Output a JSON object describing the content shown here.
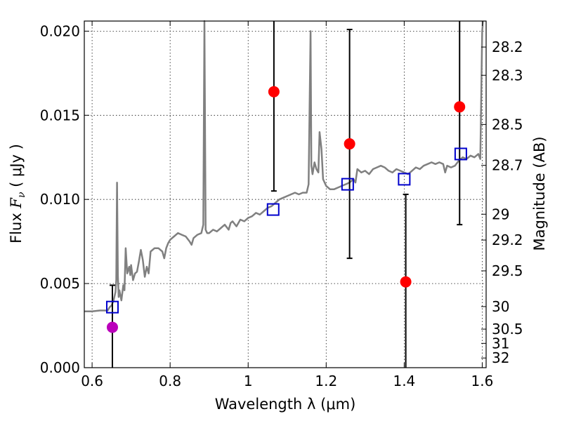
{
  "chart_data": {
    "type": "scatter",
    "xlabel": "Wavelength  λ (μm)",
    "ylabel": "Flux  F_ν  ( μJy )",
    "y2label": "Magnitude (AB)",
    "xlim": [
      0.58,
      1.61
    ],
    "ylim": [
      0.0,
      0.0206
    ],
    "x_ticks": [
      0.6,
      0.8,
      1.0,
      1.2,
      1.4,
      1.6
    ],
    "x_tick_labels": [
      "0.6",
      "0.8",
      "1",
      "1.2",
      "1.4",
      "1.6"
    ],
    "y_ticks": [
      0.0,
      0.005,
      0.01,
      0.015,
      0.02
    ],
    "y_tick_labels": [
      "0.000",
      "0.005",
      "0.010",
      "0.015",
      "0.020"
    ],
    "y2_ticks": [
      {
        "mag": 28.2,
        "label": "28.2"
      },
      {
        "mag": 28.3,
        "label": "28.3"
      },
      {
        "mag": 28.5,
        "label": "28.5"
      },
      {
        "mag": 28.7,
        "label": "28.7"
      },
      {
        "mag": 29.0,
        "label": "29"
      },
      {
        "mag": 29.2,
        "label": "29.2"
      },
      {
        "mag": 29.5,
        "label": "29.5"
      },
      {
        "mag": 30.0,
        "label": "30"
      },
      {
        "mag": 30.5,
        "label": "30.5"
      },
      {
        "mag": 31.0,
        "label": "31"
      },
      {
        "mag": 32.0,
        "label": "32"
      }
    ],
    "grid": true,
    "model_spectrum": {
      "color": "#808080",
      "points": [
        [
          0.58,
          0.00335
        ],
        [
          0.6,
          0.00335
        ],
        [
          0.62,
          0.0034
        ],
        [
          0.64,
          0.0034
        ],
        [
          0.645,
          0.0036
        ],
        [
          0.65,
          0.0037
        ],
        [
          0.655,
          0.004
        ],
        [
          0.66,
          0.0045
        ],
        [
          0.662,
          0.0052
        ],
        [
          0.664,
          0.011
        ],
        [
          0.666,
          0.0055
        ],
        [
          0.668,
          0.0042
        ],
        [
          0.67,
          0.0046
        ],
        [
          0.675,
          0.004
        ],
        [
          0.68,
          0.0049
        ],
        [
          0.683,
          0.0046
        ],
        [
          0.686,
          0.0071
        ],
        [
          0.69,
          0.0056
        ],
        [
          0.695,
          0.006
        ],
        [
          0.698,
          0.0055
        ],
        [
          0.7,
          0.0061
        ],
        [
          0.705,
          0.0052
        ],
        [
          0.71,
          0.0056
        ],
        [
          0.715,
          0.0057
        ],
        [
          0.72,
          0.0063
        ],
        [
          0.725,
          0.007
        ],
        [
          0.73,
          0.0064
        ],
        [
          0.735,
          0.0054
        ],
        [
          0.74,
          0.006
        ],
        [
          0.745,
          0.0056
        ],
        [
          0.75,
          0.0069
        ],
        [
          0.76,
          0.0071
        ],
        [
          0.77,
          0.0071
        ],
        [
          0.78,
          0.0069
        ],
        [
          0.785,
          0.0065
        ],
        [
          0.79,
          0.0071
        ],
        [
          0.795,
          0.0074
        ],
        [
          0.8,
          0.0076
        ],
        [
          0.81,
          0.0078
        ],
        [
          0.82,
          0.008
        ],
        [
          0.83,
          0.0079
        ],
        [
          0.84,
          0.0078
        ],
        [
          0.85,
          0.0075
        ],
        [
          0.855,
          0.0073
        ],
        [
          0.86,
          0.0077
        ],
        [
          0.87,
          0.0079
        ],
        [
          0.88,
          0.008
        ],
        [
          0.885,
          0.0085
        ],
        [
          0.888,
          0.0206
        ],
        [
          0.891,
          0.0082
        ],
        [
          0.895,
          0.008
        ],
        [
          0.9,
          0.008
        ],
        [
          0.91,
          0.0082
        ],
        [
          0.92,
          0.0081
        ],
        [
          0.93,
          0.0083
        ],
        [
          0.94,
          0.0085
        ],
        [
          0.95,
          0.0082
        ],
        [
          0.955,
          0.0086
        ],
        [
          0.96,
          0.0087
        ],
        [
          0.97,
          0.0084
        ],
        [
          0.98,
          0.0088
        ],
        [
          0.99,
          0.0087
        ],
        [
          1.0,
          0.0089
        ],
        [
          1.01,
          0.009
        ],
        [
          1.02,
          0.0092
        ],
        [
          1.03,
          0.0091
        ],
        [
          1.04,
          0.0093
        ],
        [
          1.05,
          0.0095
        ],
        [
          1.06,
          0.0096
        ],
        [
          1.07,
          0.0098
        ],
        [
          1.08,
          0.01
        ],
        [
          1.09,
          0.0101
        ],
        [
          1.1,
          0.0102
        ],
        [
          1.11,
          0.0103
        ],
        [
          1.12,
          0.0104
        ],
        [
          1.13,
          0.0103
        ],
        [
          1.14,
          0.0104
        ],
        [
          1.15,
          0.0104
        ],
        [
          1.155,
          0.0109
        ],
        [
          1.16,
          0.02
        ],
        [
          1.162,
          0.012
        ],
        [
          1.165,
          0.0115
        ],
        [
          1.17,
          0.0122
        ],
        [
          1.175,
          0.0118
        ],
        [
          1.18,
          0.0116
        ],
        [
          1.183,
          0.014
        ],
        [
          1.188,
          0.013
        ],
        [
          1.192,
          0.0112
        ],
        [
          1.2,
          0.0108
        ],
        [
          1.21,
          0.0106
        ],
        [
          1.22,
          0.0106
        ],
        [
          1.23,
          0.0107
        ],
        [
          1.24,
          0.0108
        ],
        [
          1.25,
          0.0109
        ],
        [
          1.26,
          0.011
        ],
        [
          1.27,
          0.0112
        ],
        [
          1.275,
          0.011
        ],
        [
          1.28,
          0.0118
        ],
        [
          1.29,
          0.0116
        ],
        [
          1.3,
          0.0117
        ],
        [
          1.31,
          0.0115
        ],
        [
          1.32,
          0.0118
        ],
        [
          1.33,
          0.0119
        ],
        [
          1.34,
          0.012
        ],
        [
          1.35,
          0.0119
        ],
        [
          1.36,
          0.0117
        ],
        [
          1.37,
          0.0116
        ],
        [
          1.38,
          0.0118
        ],
        [
          1.39,
          0.0117
        ],
        [
          1.4,
          0.0116
        ],
        [
          1.41,
          0.0115
        ],
        [
          1.42,
          0.0117
        ],
        [
          1.43,
          0.0119
        ],
        [
          1.44,
          0.0118
        ],
        [
          1.45,
          0.012
        ],
        [
          1.46,
          0.0121
        ],
        [
          1.47,
          0.0122
        ],
        [
          1.48,
          0.0121
        ],
        [
          1.49,
          0.0122
        ],
        [
          1.5,
          0.0121
        ],
        [
          1.505,
          0.0116
        ],
        [
          1.51,
          0.012
        ],
        [
          1.52,
          0.0119
        ],
        [
          1.53,
          0.012
        ],
        [
          1.54,
          0.0123
        ],
        [
          1.55,
          0.0125
        ],
        [
          1.56,
          0.0124
        ],
        [
          1.57,
          0.0126
        ],
        [
          1.58,
          0.0125
        ],
        [
          1.59,
          0.0127
        ],
        [
          1.595,
          0.0124
        ],
        [
          1.6,
          0.02
        ],
        [
          1.602,
          0.0206
        ]
      ]
    },
    "model_photometry": {
      "color": "#0000cc",
      "marker": "open-square",
      "points": [
        [
          0.652,
          0.0036
        ],
        [
          1.064,
          0.0094
        ],
        [
          1.255,
          0.0109
        ],
        [
          1.4,
          0.0112
        ],
        [
          1.545,
          0.0127
        ]
      ]
    },
    "observed": {
      "color": "#ff0000",
      "marker": "filled-circle",
      "points": [
        {
          "x": 1.066,
          "y": 0.0164,
          "ylow": 0.0105,
          "yhigh": 0.0206
        },
        {
          "x": 1.26,
          "y": 0.0133,
          "ylow": 0.0065,
          "yhigh": 0.0201
        },
        {
          "x": 1.404,
          "y": 0.0051,
          "ylow": 0.0,
          "yhigh": 0.0103
        },
        {
          "x": 1.542,
          "y": 0.0155,
          "ylow": 0.0085,
          "yhigh": 0.0206
        }
      ]
    },
    "observed_extra": {
      "color": "#bb00bb",
      "marker": "filled-circle",
      "points": [
        {
          "x": 0.652,
          "y": 0.0024,
          "ylow": 0.0,
          "yhigh": 0.0049
        }
      ]
    }
  }
}
